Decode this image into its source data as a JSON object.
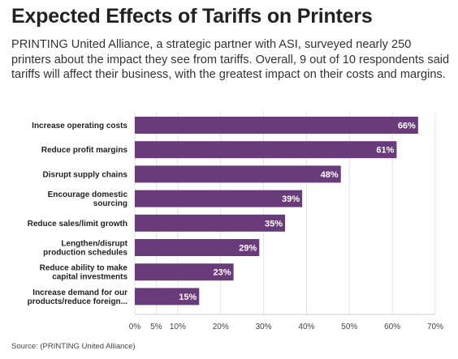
{
  "header": {
    "title": "Expected Effects of Tariffs on Printers",
    "subtitle": "PRINTING United Alliance, a strategic partner with ASI, surveyed nearly 250 printers about the impact they see from tariffs. Overall, 9 out of 10 respondents said tariffs will affect their business, with the greatest impact on their costs and margins."
  },
  "chart_data": {
    "type": "bar",
    "orientation": "horizontal",
    "categories": [
      [
        "Increase operating costs"
      ],
      [
        "Reduce profit margins"
      ],
      [
        "Disrupt supply chains"
      ],
      [
        "Encourage domestic",
        "sourcing"
      ],
      [
        "Reduce sales/limit growth"
      ],
      [
        "Lengthen/disrupt",
        "production schedules"
      ],
      [
        "Reduce ability to make",
        "capital investments"
      ],
      [
        "Increase demand for our",
        "products/reduce foreign..."
      ]
    ],
    "values": [
      66,
      61,
      48,
      39,
      35,
      29,
      23,
      15
    ],
    "value_labels": [
      "66%",
      "61%",
      "48%",
      "39%",
      "35%",
      "29%",
      "23%",
      "15%"
    ],
    "xticks": [
      0,
      5,
      10,
      20,
      30,
      40,
      50,
      60,
      70
    ],
    "xtick_labels": [
      "0%",
      "5%",
      "10%",
      "20%",
      "30%",
      "40%",
      "50%",
      "60%",
      "70%"
    ],
    "xlim": [
      0,
      70
    ],
    "bar_color": "#6a3b7a",
    "grid": true
  },
  "footer": {
    "source": "Source: (PRINTING United Alliance)"
  }
}
